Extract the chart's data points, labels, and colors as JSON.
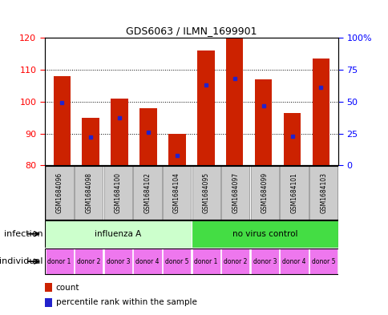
{
  "title": "GDS6063 / ILMN_1699901",
  "samples": [
    "GSM1684096",
    "GSM1684098",
    "GSM1684100",
    "GSM1684102",
    "GSM1684104",
    "GSM1684095",
    "GSM1684097",
    "GSM1684099",
    "GSM1684101",
    "GSM1684103"
  ],
  "counts": [
    108,
    95,
    101,
    98,
    90,
    116,
    120,
    107,
    96.5,
    113.5
  ],
  "percentile_ranks": [
    49,
    22,
    37,
    26,
    8,
    63,
    68,
    47,
    23,
    61
  ],
  "ylim_left": [
    80,
    120
  ],
  "ylim_right": [
    0,
    100
  ],
  "yticks_left": [
    80,
    90,
    100,
    110,
    120
  ],
  "yticks_right": [
    0,
    25,
    50,
    75,
    100
  ],
  "ytick_labels_right": [
    "0",
    "25",
    "50",
    "75",
    "100%"
  ],
  "bar_color": "#cc2200",
  "marker_color": "#2222cc",
  "infection_groups": [
    {
      "label": "influenza A",
      "start": 0,
      "end": 5,
      "color": "#ccffcc"
    },
    {
      "label": "no virus control",
      "start": 5,
      "end": 10,
      "color": "#44dd44"
    }
  ],
  "individual_labels": [
    "donor 1",
    "donor 2",
    "donor 3",
    "donor 4",
    "donor 5",
    "donor 1",
    "donor 2",
    "donor 3",
    "donor 4",
    "donor 5"
  ],
  "individual_color": "#ee77ee",
  "sample_bg_color": "#cccccc",
  "sample_border_color": "#888888",
  "bar_width": 0.6,
  "base_value": 80
}
